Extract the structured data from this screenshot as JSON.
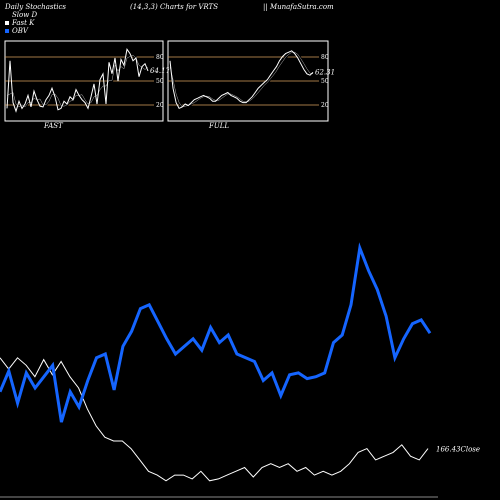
{
  "header": {
    "left": "Daily Stochastics",
    "middle": "(14,3,3) Charts for VRTS",
    "right": "|| MunafaSutra.com"
  },
  "legend": [
    {
      "label": "Slow  D",
      "color": "#000000"
    },
    {
      "label": "Fast K",
      "color": "#ffffff"
    },
    {
      "label": "OBV",
      "color": "#1565ff"
    }
  ],
  "colors": {
    "background": "#000000",
    "panel_border": "#ffffff",
    "level_lines": "#d9a25e",
    "fast_k": "#ffffff",
    "price": "#ffffff",
    "obv": "#1565ff"
  },
  "chart_data": [
    {
      "type": "line",
      "name": "fast-stochastic",
      "panel_label": "FAST",
      "ylim": [
        0,
        100
      ],
      "levels": [
        80,
        50,
        20
      ],
      "last_value_label": "64.17",
      "series": [
        {
          "key": "k",
          "values": [
            12,
            78,
            20,
            8,
            22,
            12,
            18,
            30,
            14,
            36,
            24,
            15,
            14,
            24,
            30,
            40,
            28,
            10,
            12,
            22,
            18,
            28,
            24,
            38,
            30,
            24,
            20,
            12,
            28,
            46,
            18,
            52,
            60,
            18,
            76,
            60,
            82,
            50,
            80,
            72,
            94,
            88,
            78,
            82,
            56,
            70,
            74,
            64
          ]
        },
        {
          "key": "d",
          "values": [
            30,
            32,
            34,
            18,
            14,
            17,
            14,
            20,
            20,
            26,
            24,
            25,
            17,
            17,
            22,
            31,
            32,
            26,
            16,
            15,
            17,
            22,
            23,
            30,
            30,
            31,
            24,
            18,
            20,
            28,
            30,
            38,
            43,
            43,
            51,
            51,
            72,
            64,
            70,
            67,
            82,
            84,
            86,
            82,
            72,
            69,
            66,
            69
          ]
        }
      ]
    },
    {
      "type": "line",
      "name": "full-stochastic",
      "panel_label": "FULL",
      "ylim": [
        0,
        100
      ],
      "levels": [
        80,
        50,
        20
      ],
      "last_value_label": "62.31",
      "series": [
        {
          "key": "k",
          "values": [
            78,
            40,
            20,
            12,
            14,
            18,
            16,
            20,
            24,
            26,
            28,
            30,
            28,
            26,
            22,
            22,
            26,
            30,
            32,
            34,
            30,
            28,
            26,
            22,
            20,
            20,
            24,
            28,
            34,
            40,
            44,
            48,
            52,
            58,
            64,
            70,
            78,
            84,
            88,
            90,
            92,
            88,
            82,
            74,
            66,
            60,
            58,
            62
          ]
        },
        {
          "key": "d",
          "values": [
            70,
            52,
            32,
            20,
            14,
            15,
            16,
            18,
            20,
            23,
            26,
            28,
            29,
            28,
            25,
            23,
            23,
            26,
            29,
            32,
            32,
            30,
            28,
            25,
            22,
            21,
            22,
            25,
            29,
            34,
            39,
            44,
            48,
            53,
            58,
            64,
            71,
            77,
            83,
            87,
            90,
            90,
            87,
            81,
            74,
            67,
            61,
            60
          ]
        }
      ]
    },
    {
      "type": "line",
      "name": "price-and-obv",
      "end_label": "166.43Close",
      "series": [
        {
          "key": "close",
          "values": [
            72,
            66,
            72,
            68,
            62,
            71,
            63,
            70,
            62,
            56,
            45,
            36,
            30,
            28,
            28,
            24,
            18,
            12,
            10,
            7,
            10,
            10,
            8,
            12,
            7,
            8,
            10,
            12,
            14,
            9,
            14,
            16,
            14,
            16,
            12,
            14,
            10,
            12,
            10,
            12,
            16,
            22,
            24,
            18,
            20,
            22,
            26,
            20,
            18,
            24
          ]
        },
        {
          "key": "obv",
          "values": [
            54,
            65,
            48,
            64,
            56,
            62,
            68,
            38,
            54,
            46,
            60,
            72,
            74,
            55,
            78,
            86,
            98,
            100,
            91,
            82,
            74,
            78,
            82,
            76,
            88,
            80,
            84,
            74,
            72,
            70,
            60,
            64,
            52,
            63,
            64,
            61,
            62,
            64,
            80,
            84,
            100,
            130,
            118,
            108,
            94,
            72,
            82,
            90,
            92,
            85
          ]
        }
      ]
    }
  ]
}
